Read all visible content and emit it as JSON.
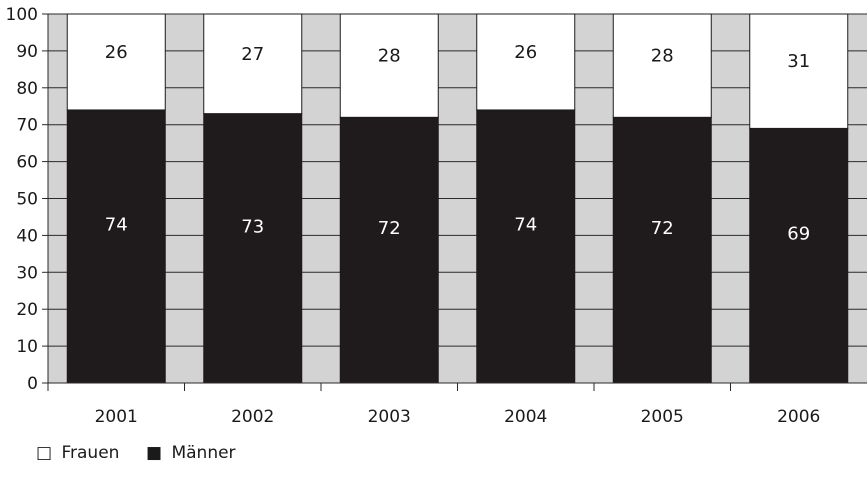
{
  "chart_data": {
    "type": "bar",
    "stacked": true,
    "categories": [
      "2001",
      "2002",
      "2003",
      "2004",
      "2005",
      "2006"
    ],
    "series": [
      {
        "name": "Männer",
        "values": [
          74,
          73,
          72,
          74,
          72,
          69
        ],
        "color": "#1f1a1c"
      },
      {
        "name": "Frauen",
        "values": [
          26,
          27,
          28,
          26,
          28,
          31
        ],
        "color": "#ffffff"
      }
    ],
    "title": "",
    "xlabel": "",
    "ylabel": "",
    "ylim": [
      0,
      100
    ],
    "yticks": [
      0,
      10,
      20,
      30,
      40,
      50,
      60,
      70,
      80,
      90,
      100
    ],
    "grid": true,
    "plot_background": "#d3d3d3",
    "legend": {
      "placement": "bottom-left",
      "entries": [
        {
          "label": "Frauen",
          "symbol": "□"
        },
        {
          "label": "Männer",
          "symbol": "■"
        }
      ]
    }
  }
}
